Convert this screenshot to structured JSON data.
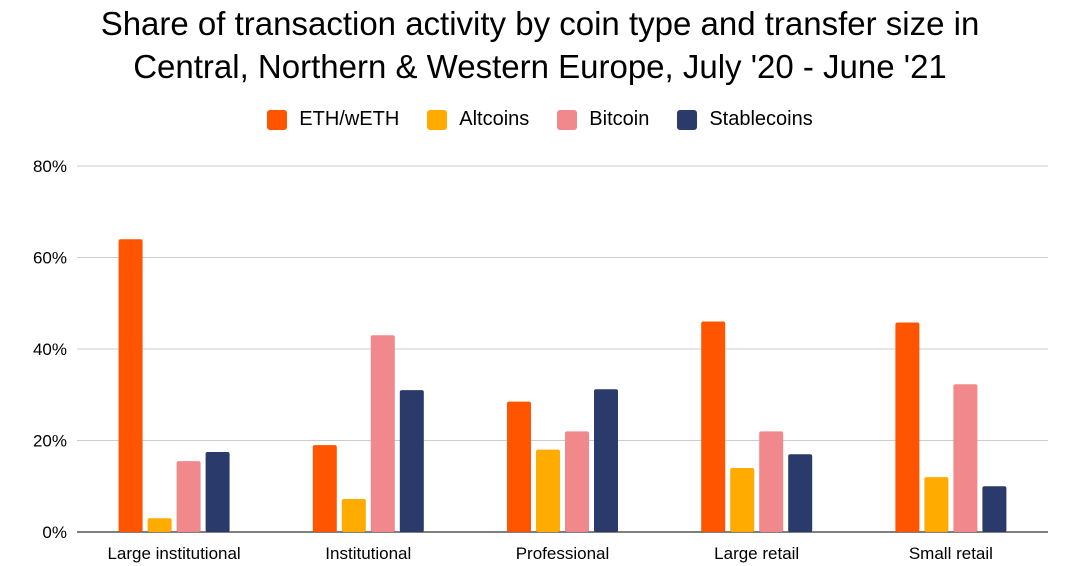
{
  "chart_data": {
    "type": "bar",
    "title_line1": "Share of transaction activity by coin type and transfer size in",
    "title_line2": "Central, Northern & Western Europe, July '20 - June '21",
    "categories": [
      "Large institutional",
      "Institutional",
      "Professional",
      "Large retail",
      "Small retail"
    ],
    "series": [
      {
        "name": "ETH/wETH",
        "color": "#ff5500",
        "values": [
          64,
          19,
          28.5,
          46,
          45.8
        ]
      },
      {
        "name": "Altcoins",
        "color": "#ffab00",
        "values": [
          3,
          7.2,
          18,
          14,
          12
        ]
      },
      {
        "name": "Bitcoin",
        "color": "#f1888c",
        "values": [
          15.5,
          43,
          22,
          22,
          32.3
        ]
      },
      {
        "name": "Stablecoins",
        "color": "#2a3a6b",
        "values": [
          17.5,
          31,
          31.2,
          17,
          10
        ]
      }
    ],
    "y_ticks": [
      "0%",
      "20%",
      "40%",
      "60%",
      "80%"
    ],
    "ylim": [
      0,
      80
    ],
    "grid": true,
    "legend_position": "top-center"
  }
}
